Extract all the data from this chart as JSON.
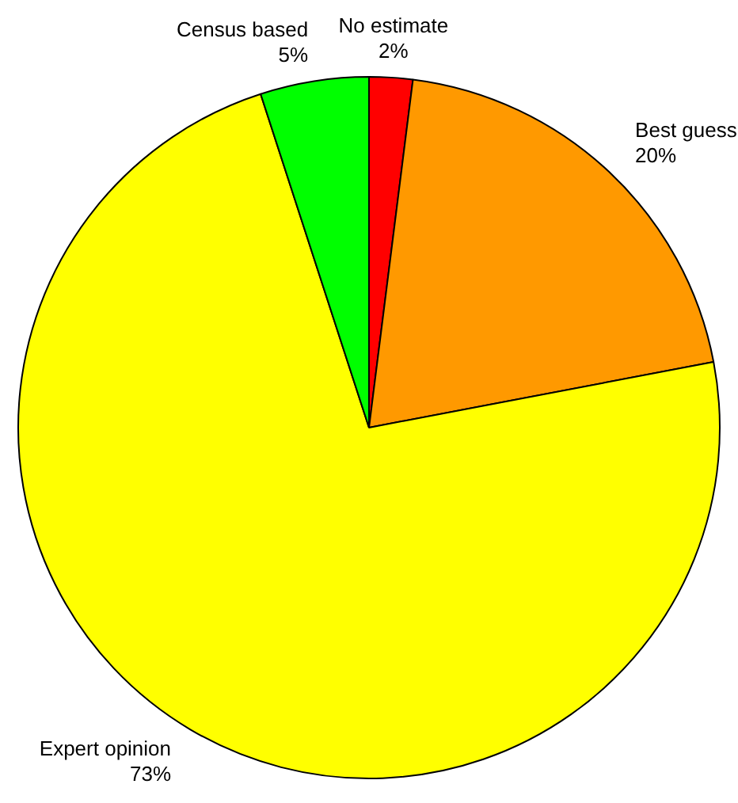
{
  "chart_data": {
    "type": "pie",
    "categories": [
      "No estimate",
      "Best guess",
      "Expert opinion",
      "Census based"
    ],
    "values": [
      2,
      20,
      73,
      5
    ],
    "colors": [
      "#ff0000",
      "#ff9900",
      "#ffff00",
      "#00ff00"
    ],
    "value_labels": [
      "2%",
      "20%",
      "73%",
      "5%"
    ],
    "legend": false
  }
}
